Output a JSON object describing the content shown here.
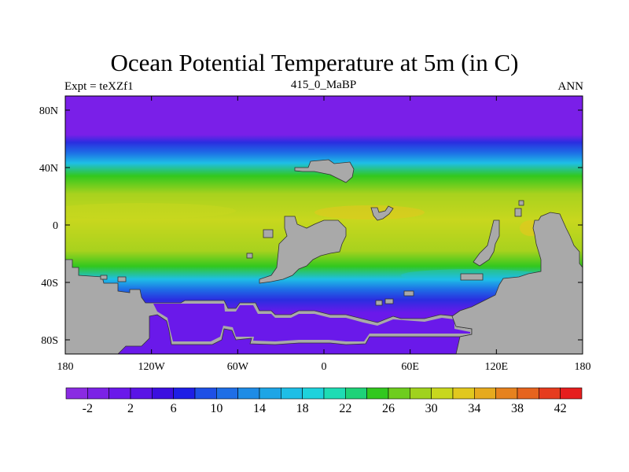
{
  "title": "Ocean Potential Temperature at 5m (in C)",
  "left_label": "Expt = teXZf1",
  "center_label": "415_0_MaBP",
  "right_label": "ANN",
  "lat_ticks": [
    "80N",
    "40N",
    "0",
    "40S",
    "80S"
  ],
  "lon_ticks": [
    "180",
    "120W",
    "60W",
    "0",
    "60E",
    "120E",
    "180"
  ],
  "colorbar": {
    "colors": [
      "#8a2be2",
      "#7b22e6",
      "#6a19ea",
      "#5a14e6",
      "#3c0fe0",
      "#1e1ee6",
      "#1e50e6",
      "#1e6ee6",
      "#1e8ce6",
      "#1ea5e6",
      "#1ebee6",
      "#1ed2dc",
      "#1edcb4",
      "#1ed278",
      "#32c81e",
      "#6ecd1e",
      "#a0d21e",
      "#c8d71e",
      "#e1c81e",
      "#e6aa1e",
      "#e6821e",
      "#e6641e",
      "#e63c1e",
      "#e61e1e"
    ],
    "labels": [
      "-2",
      "2",
      "6",
      "10",
      "14",
      "18",
      "22",
      "26",
      "30",
      "34",
      "38",
      "42"
    ]
  },
  "map_colors": {
    "polar_north": "#7a1fe8",
    "band_blue_dark": "#2a2ee0",
    "band_blue": "#1e6ee6",
    "band_cyan": "#1ebee6",
    "band_green": "#32c81e",
    "band_yellowgreen": "#a8d21e",
    "band_yellow": "#c8d71e",
    "warm_spot": "#e1c81e",
    "polar_south": "#6a19ea",
    "land": "#a9a9a9"
  }
}
